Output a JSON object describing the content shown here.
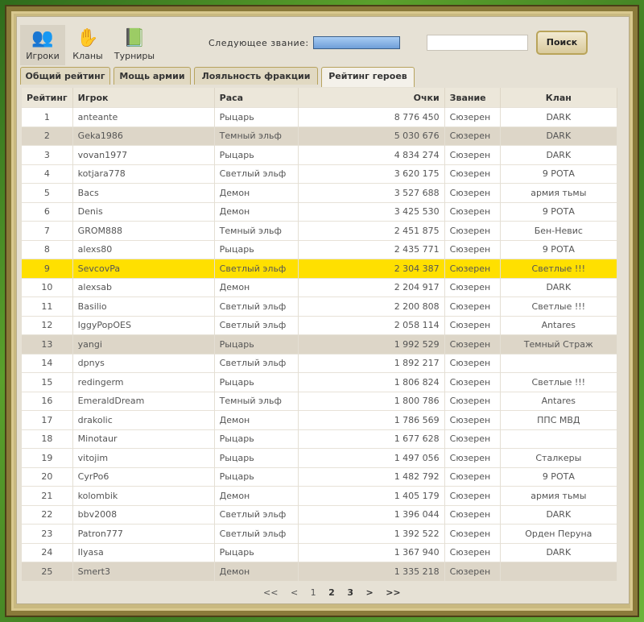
{
  "nav": [
    {
      "label": "Игроки",
      "icon": "players-icon"
    },
    {
      "label": "Кланы",
      "icon": "clans-icon"
    },
    {
      "label": "Турниры",
      "icon": "tournaments-icon"
    }
  ],
  "next_rank_label": "Следующее звание:",
  "search": {
    "value": "",
    "button": "Поиск"
  },
  "tabs": [
    "Общий рейтинг",
    "Мощь армии",
    "Лояльность фракции",
    "Рейтинг героев"
  ],
  "active_tab": "Рейтинг героев",
  "columns": [
    "Рейтинг",
    "Игрок",
    "Раса",
    "Очки",
    "Звание",
    "Клан"
  ],
  "rows": [
    [
      "1",
      "anteante",
      "Рыцарь",
      "8 776 450",
      "Сюзерен",
      "DARK"
    ],
    [
      "2",
      "Geka1986",
      "Темный эльф",
      "5 030 676",
      "Сюзерен",
      "DARK"
    ],
    [
      "3",
      "vovan1977",
      "Рыцарь",
      "4 834 274",
      "Сюзерен",
      "DARK"
    ],
    [
      "4",
      "kotjara778",
      "Светлый эльф",
      "3 620 175",
      "Сюзерен",
      "9 РОТА"
    ],
    [
      "5",
      "Bacs",
      "Демон",
      "3 527 688",
      "Сюзерен",
      "армия тьмы"
    ],
    [
      "6",
      "Denis",
      "Демон",
      "3 425 530",
      "Сюзерен",
      "9 РОТА"
    ],
    [
      "7",
      "GROM888",
      "Темный эльф",
      "2 451 875",
      "Сюзерен",
      "Бен-Невис"
    ],
    [
      "8",
      "alexs80",
      "Рыцарь",
      "2 435 771",
      "Сюзерен",
      "9 РОТА"
    ],
    [
      "9",
      "SevcovPa",
      "Светлый эльф",
      "2 304 387",
      "Сюзерен",
      "Светлые !!!"
    ],
    [
      "10",
      "alexsab",
      "Демон",
      "2 204 917",
      "Сюзерен",
      "DARK"
    ],
    [
      "11",
      "Basilio",
      "Светлый эльф",
      "2 200 808",
      "Сюзерен",
      "Светлые !!!"
    ],
    [
      "12",
      "IggyPopOES",
      "Светлый эльф",
      "2 058 114",
      "Сюзерен",
      "Antares"
    ],
    [
      "13",
      "yangi",
      "Рыцарь",
      "1 992 529",
      "Сюзерен",
      "Темный Страж"
    ],
    [
      "14",
      "dpnys",
      "Светлый эльф",
      "1 892 217",
      "Сюзерен",
      ""
    ],
    [
      "15",
      "redingerm",
      "Рыцарь",
      "1 806 824",
      "Сюзерен",
      "Светлые !!!"
    ],
    [
      "16",
      "EmeraldDream",
      "Темный эльф",
      "1 800 786",
      "Сюзерен",
      "Antares"
    ],
    [
      "17",
      "drakolic",
      "Демон",
      "1 786 569",
      "Сюзерен",
      "ППС МВД"
    ],
    [
      "18",
      "Minotaur",
      "Рыцарь",
      "1 677 628",
      "Сюзерен",
      ""
    ],
    [
      "19",
      "vitojim",
      "Рыцарь",
      "1 497 056",
      "Сюзерен",
      "Сталкеры"
    ],
    [
      "20",
      "CyrPo6",
      "Рыцарь",
      "1 482 792",
      "Сюзерен",
      "9 РОТА"
    ],
    [
      "21",
      "kolombik",
      "Демон",
      "1 405 179",
      "Сюзерен",
      "армия тьмы"
    ],
    [
      "22",
      "bbv2008",
      "Светлый эльф",
      "1 396 044",
      "Сюзерен",
      "DARK"
    ],
    [
      "23",
      "Patron777",
      "Светлый эльф",
      "1 392 522",
      "Сюзерен",
      "Орден Перуна"
    ],
    [
      "24",
      "Ilyasa",
      "Рыцарь",
      "1 367 940",
      "Сюзерен",
      "DARK"
    ],
    [
      "25",
      "Smert3",
      "Демон",
      "1 335 218",
      "Сюзерен",
      ""
    ]
  ],
  "highlighted_rows": {
    "alt": [
      2,
      13,
      25
    ],
    "yellow": [
      9
    ]
  },
  "colors": {
    "highlight": "#ffe000",
    "alt_row": "#ddd6c8",
    "panel": "#e6e1d5"
  },
  "pager": [
    "<<",
    "<",
    "1",
    "2",
    "3",
    ">",
    ">>"
  ]
}
